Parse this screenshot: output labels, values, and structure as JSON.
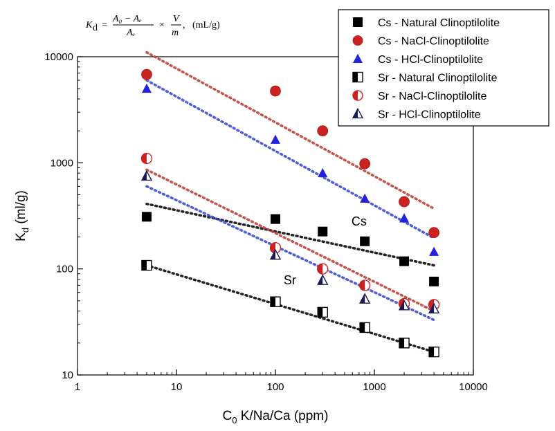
{
  "chart_data": {
    "type": "scatter",
    "title": "",
    "formula": {
      "lhs": "K",
      "lhs_sub": "d",
      "frac1_num": "A₀ − Aₑ",
      "frac1_den": "Aₑ",
      "times": "×",
      "frac2_num": "V",
      "frac2_den": "m",
      "units": ",   (mL/g)"
    },
    "xlabel_main": "C",
    "xlabel_sub": "0",
    "xlabel_rest": " K/Na/Ca (ppm)",
    "ylabel_main": "K",
    "ylabel_sub": "d",
    "ylabel_rest": " (ml/g)",
    "xscale": "log",
    "yscale": "log",
    "xlim": [
      1,
      10000
    ],
    "ylim": [
      10,
      10000
    ],
    "x_ticks": [
      1,
      10,
      100,
      1000,
      10000
    ],
    "x_tick_labels": [
      "1",
      "10",
      "100",
      "1000",
      "10000"
    ],
    "y_ticks": [
      10,
      100,
      1000,
      10000
    ],
    "y_tick_labels": [
      "10",
      "100",
      "1000",
      "10000"
    ],
    "grid": false,
    "legend_position": "top-right",
    "annotations": [
      {
        "text": "Cs",
        "x": 700,
        "y": 280
      },
      {
        "text": "Sr",
        "x": 140,
        "y": 78
      }
    ],
    "series": [
      {
        "name": "Cs - Natural Clinoptilolite",
        "marker": "square",
        "fill": "solid",
        "color": "#000000",
        "x": [
          5,
          100,
          300,
          800,
          2000,
          4000
        ],
        "y": [
          310,
          295,
          225,
          182,
          118,
          76
        ],
        "fit": {
          "x": [
            5,
            4000
          ],
          "y": [
            410,
            108
          ],
          "color": "#000000"
        }
      },
      {
        "name": "Cs - NaCl-Clinoptilolite",
        "marker": "circle",
        "fill": "solid",
        "color": "#cc2222",
        "x": [
          5,
          100,
          300,
          800,
          2000,
          4000
        ],
        "y": [
          6800,
          4750,
          2000,
          980,
          430,
          220
        ],
        "fit": {
          "x": [
            5,
            4000
          ],
          "y": [
            11000,
            370
          ],
          "color": "#b83a30"
        }
      },
      {
        "name": "Cs - HCl-Clinoptilolite",
        "marker": "triangle",
        "fill": "solid",
        "color": "#2222dd",
        "x": [
          5,
          100,
          300,
          800,
          2000,
          4000
        ],
        "y": [
          5000,
          1650,
          800,
          460,
          300,
          145
        ],
        "fit": {
          "x": [
            5,
            4000
          ],
          "y": [
            6000,
            195
          ],
          "color": "#3344cc"
        }
      },
      {
        "name": "Sr - Natural Clinoptilolite",
        "marker": "square",
        "fill": "half",
        "color": "#000000",
        "x": [
          5,
          100,
          300,
          800,
          2000,
          4000
        ],
        "y": [
          108,
          49,
          39,
          28,
          20,
          16.5
        ],
        "fit": {
          "x": [
            5,
            4000
          ],
          "y": [
            108,
            16.5
          ],
          "color": "#000000"
        }
      },
      {
        "name": "Sr - NaCl-Clinoptilolite",
        "marker": "circle",
        "fill": "half",
        "color": "#cc2222",
        "x": [
          5,
          100,
          300,
          800,
          2000,
          4000
        ],
        "y": [
          1100,
          158,
          100,
          70,
          47,
          46
        ],
        "fit": {
          "x": [
            5,
            4000
          ],
          "y": [
            860,
            40
          ],
          "color": "#b83a30"
        }
      },
      {
        "name": "Sr - HCl-Clinoptilolite",
        "marker": "triangle",
        "fill": "half",
        "color": "#1a1a55",
        "x": [
          5,
          100,
          300,
          800,
          2000,
          4000
        ],
        "y": [
          750,
          135,
          78,
          52,
          45,
          42
        ],
        "fit": {
          "x": [
            5,
            4000
          ],
          "y": [
            600,
            33
          ],
          "color": "#3344cc"
        }
      }
    ]
  }
}
